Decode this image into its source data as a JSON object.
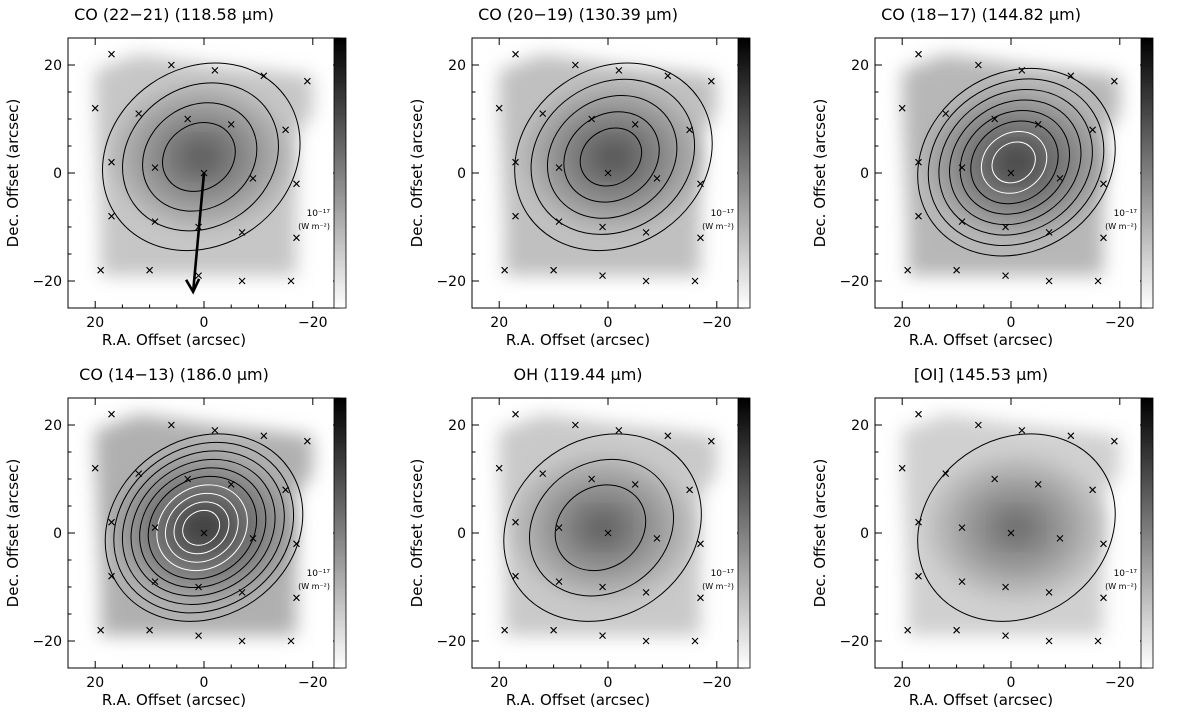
{
  "figure": {
    "panels": [
      {
        "title": "CO (22−21) (118.58 μm)",
        "xlabel": "R.A. Offset (arcsec)",
        "ylabel": "Dec. Offset (arcsec)",
        "colorbar_label": "10⁻¹⁷",
        "colorbar_unit": "(W m⁻²)"
      },
      {
        "title": "CO (20−19) (130.39 μm)",
        "xlabel": "R.A. Offset (arcsec)",
        "ylabel": "Dec. Offset (arcsec)",
        "colorbar_label": "10⁻¹⁷",
        "colorbar_unit": "(W m⁻²)"
      },
      {
        "title": "CO (18−17) (144.82 μm)",
        "xlabel": "R.A. Offset (arcsec)",
        "ylabel": "Dec. Offset (arcsec)",
        "colorbar_label": "10⁻¹⁷",
        "colorbar_unit": "(W m⁻²)"
      },
      {
        "title": "CO (14−13) (186.0 μm)",
        "xlabel": "R.A. Offset (arcsec)",
        "ylabel": "Dec. Offset (arcsec)",
        "colorbar_label": "10⁻¹⁷",
        "colorbar_unit": "(W m⁻²)"
      },
      {
        "title": "OH (119.44 μm)",
        "xlabel": "R.A. Offset (arcsec)",
        "ylabel": "Dec. Offset (arcsec)",
        "colorbar_label": "10⁻¹⁷",
        "colorbar_unit": "(W m⁻²)"
      },
      {
        "title": "[OI] (145.53 μm)",
        "xlabel": "R.A. Offset (arcsec)",
        "ylabel": "Dec. Offset (arcsec)",
        "colorbar_label": "10⁻¹⁷",
        "colorbar_unit": "(W m⁻²)"
      }
    ]
  },
  "chart_data": {
    "type": "heatmap",
    "xlim": [
      25,
      -25
    ],
    "ylim": [
      -25,
      25
    ],
    "xticks": [
      20,
      0,
      -20
    ],
    "yticks": [
      -20,
      0,
      20
    ],
    "pointing_positions": [
      [
        17,
        22
      ],
      [
        6,
        20
      ],
      [
        -2,
        19
      ],
      [
        -11,
        18
      ],
      [
        -19,
        17
      ],
      [
        20,
        12
      ],
      [
        12,
        11
      ],
      [
        3,
        10
      ],
      [
        -5,
        9
      ],
      [
        -15,
        8
      ],
      [
        17,
        2
      ],
      [
        9,
        1
      ],
      [
        0,
        0
      ],
      [
        -9,
        -1
      ],
      [
        -17,
        -2
      ],
      [
        17,
        -8
      ],
      [
        9,
        -9
      ],
      [
        1,
        -10
      ],
      [
        -7,
        -11
      ],
      [
        -17,
        -12
      ],
      [
        19,
        -18
      ],
      [
        10,
        -18
      ],
      [
        1,
        -19
      ],
      [
        -7,
        -20
      ],
      [
        -16,
        -20
      ]
    ],
    "arrow": {
      "from": [
        0,
        0
      ],
      "to": [
        2,
        -22
      ],
      "panel": 1
    },
    "maps": [
      {
        "name": "CO (22−21)",
        "peak": [
          0.5,
          3.0
        ],
        "contours": 4,
        "white_contours": 0
      },
      {
        "name": "CO (20−19)",
        "peak": [
          -1.0,
          3.0
        ],
        "contours": 5,
        "white_contours": 0
      },
      {
        "name": "CO (18−17)",
        "peak": [
          -1.0,
          2.0
        ],
        "contours": 8,
        "white_contours": 2
      },
      {
        "name": "CO (14−13)",
        "peak": [
          0.0,
          1.0
        ],
        "contours": 10,
        "white_contours": 4
      },
      {
        "name": "OH",
        "peak": [
          1.0,
          1.0
        ],
        "contours": 3,
        "white_contours": 0
      },
      {
        "name": "[OI]",
        "peak": [
          -1.0,
          1.0
        ],
        "contours": 1,
        "white_contours": 0
      }
    ]
  }
}
